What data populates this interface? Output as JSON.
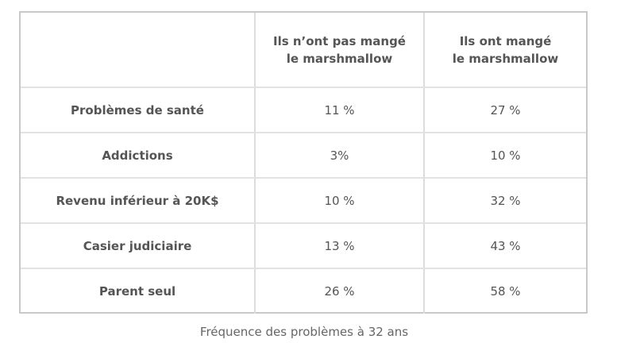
{
  "chart_data": {
    "type": "table",
    "columns": [
      "",
      [
        "Ils n’ont pas mangé",
        "le marshmallow"
      ],
      [
        "Ils ont mangé",
        "le marshmallow"
      ]
    ],
    "rows": [
      {
        "label": "Problèmes de santé",
        "values": [
          "11 %",
          "27 %"
        ]
      },
      {
        "label": "Addictions",
        "values": [
          "3%",
          "10 %"
        ]
      },
      {
        "label": "Revenu inférieur à 20K$",
        "values": [
          "10 %",
          "32 %"
        ]
      },
      {
        "label": "Casier judiciaire",
        "values": [
          "13 %",
          "43 %"
        ]
      },
      {
        "label": "Parent seul",
        "values": [
          "26 %",
          "58 %"
        ]
      }
    ],
    "caption": "Fréquence des problèmes à 32 ans"
  }
}
